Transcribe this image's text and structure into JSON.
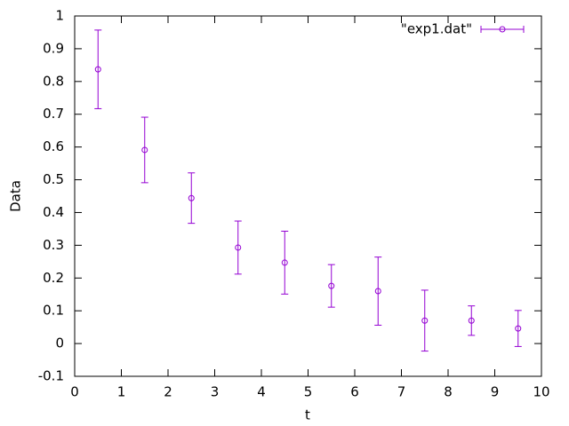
{
  "chart_data": {
    "type": "errorbar",
    "xlabel": "t",
    "ylabel": "Data",
    "xlim": [
      0,
      10
    ],
    "xticks": [
      0,
      1,
      2,
      3,
      4,
      5,
      6,
      7,
      8,
      9,
      10
    ],
    "ylim": [
      -0.1,
      1
    ],
    "yticks": [
      -0.1,
      0,
      0.1,
      0.2,
      0.3,
      0.4,
      0.5,
      0.6,
      0.7,
      0.8,
      0.9,
      1
    ],
    "legend": "upper right",
    "series": [
      {
        "name": "\"exp1.dat\"",
        "color": "#9400d3",
        "x": [
          0.5,
          1.5,
          2.5,
          3.5,
          4.5,
          5.5,
          6.5,
          7.5,
          8.5,
          9.5
        ],
        "values": [
          0.837,
          0.591,
          0.444,
          0.293,
          0.247,
          0.176,
          0.16,
          0.07,
          0.07,
          0.046
        ],
        "errors": [
          0.12,
          0.1,
          0.077,
          0.081,
          0.096,
          0.065,
          0.104,
          0.093,
          0.045,
          0.055
        ]
      }
    ]
  }
}
